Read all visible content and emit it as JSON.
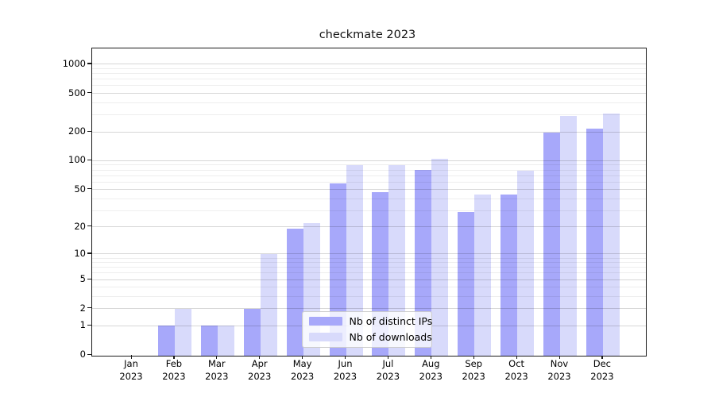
{
  "chart_data": {
    "type": "bar",
    "title": "checkmate 2023",
    "categories": [
      "Jan",
      "Feb",
      "Mar",
      "Apr",
      "May",
      "Jun",
      "Jul",
      "Aug",
      "Sep",
      "Oct",
      "Nov",
      "Dec"
    ],
    "category_year": "2023",
    "series": [
      {
        "name": "Nb of distinct IPs",
        "color": "#a7a8fa",
        "values": [
          0,
          1,
          1,
          2,
          19,
          58,
          47,
          81,
          29,
          44,
          197,
          217
        ]
      },
      {
        "name": "Nb of downloads",
        "color": "#d8dafb",
        "values": [
          0,
          2,
          1,
          10,
          22,
          90,
          90,
          105,
          44,
          79,
          292,
          308
        ]
      }
    ],
    "yscale": "log1p",
    "yticks": [
      0,
      1,
      2,
      5,
      10,
      20,
      50,
      100,
      200,
      500,
      1000
    ],
    "yticks_minor": [
      3,
      4,
      6,
      7,
      8,
      9,
      30,
      40,
      60,
      70,
      80,
      90,
      300,
      400,
      600,
      700,
      800,
      900
    ],
    "ylim": [
      0,
      1465
    ],
    "xlabel": "",
    "ylabel": "",
    "grid": "horizontal",
    "legend_position": "lower center"
  }
}
